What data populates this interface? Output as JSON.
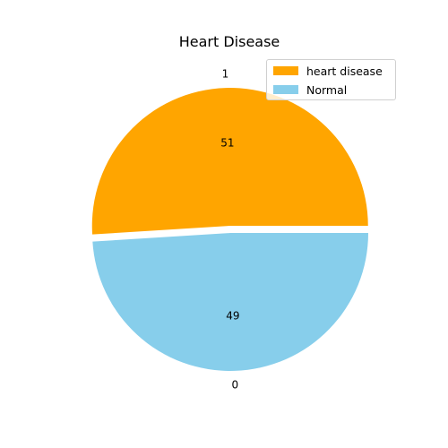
{
  "chart_data": {
    "type": "pie",
    "title": "Heart Disease",
    "slices": [
      {
        "label": "1",
        "value": 51,
        "value_label": "51",
        "color": "#FFA500",
        "legend": "heart disease",
        "exploded": true
      },
      {
        "label": "0",
        "value": 49,
        "value_label": "49",
        "color": "#87CEEB",
        "legend": "Normal",
        "exploded": false
      }
    ],
    "legend_placement": "top-right"
  }
}
